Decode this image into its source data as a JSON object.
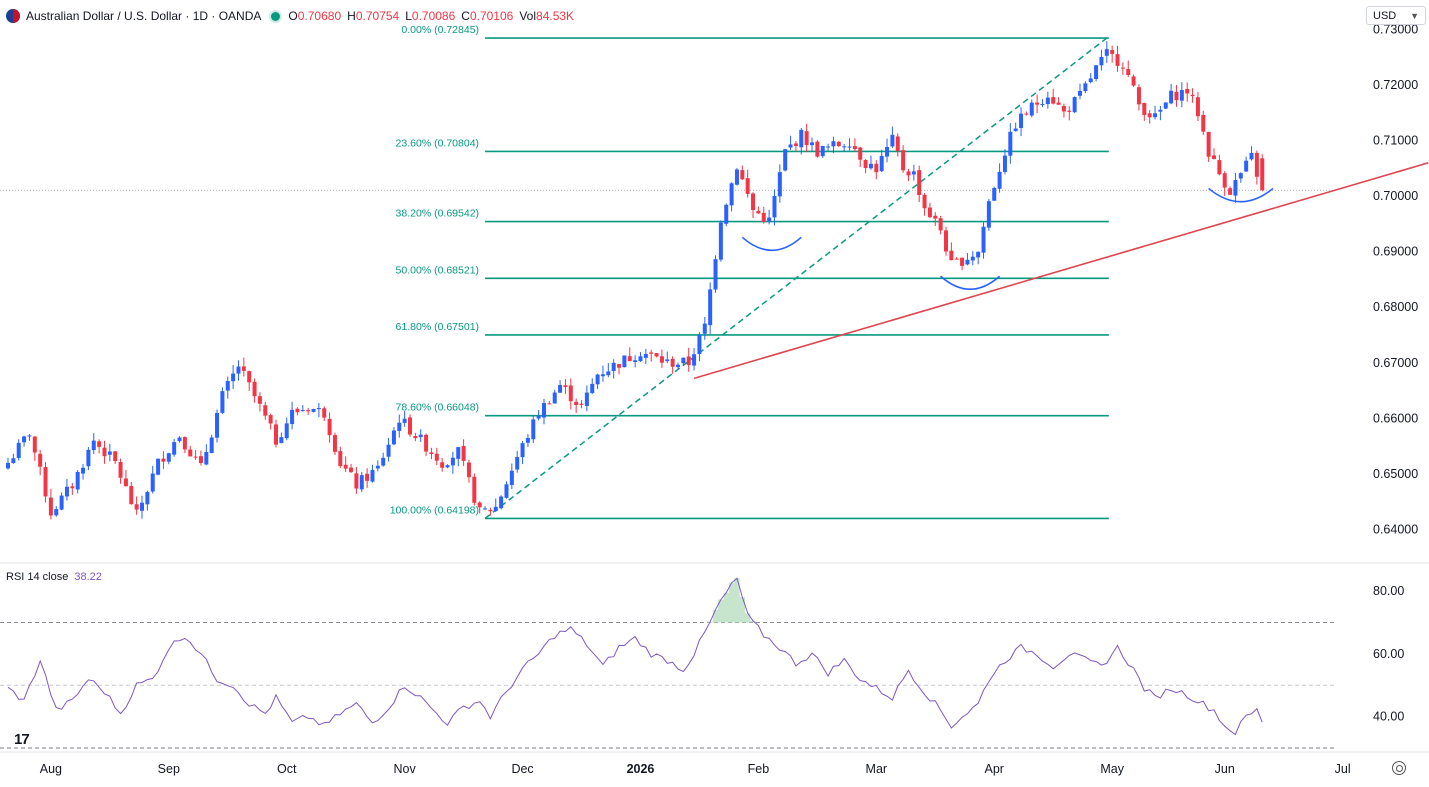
{
  "header": {
    "symbol_title": "Australian Dollar / U.S. Dollar · 1D · OANDA",
    "ohlc": [
      {
        "key": "O",
        "value": "0.70680"
      },
      {
        "key": "H",
        "value": "0.70754"
      },
      {
        "key": "L",
        "value": "0.70086"
      },
      {
        "key": "C",
        "value": "0.70106"
      },
      {
        "key": "Vol",
        "value": "84.53K"
      }
    ],
    "currency": "USD"
  },
  "rsi_legend": {
    "label": "RSI 14 close",
    "value": "38.22"
  },
  "colors": {
    "up": "#2962ff",
    "down": "#f23645",
    "fib": "#089981",
    "trend": "#e0454f",
    "rsi": "#7e57c2",
    "arc": "#2962ff"
  },
  "chart_data": {
    "type": "candlestick",
    "title": "Australian Dollar / U.S. Dollar · 1D · OANDA",
    "price_axis": {
      "ylim": [
        0.6345,
        0.7335
      ],
      "ticks": [
        "0.73000",
        "0.72000",
        "0.71000",
        "0.70000",
        "0.69000",
        "0.68000",
        "0.67000",
        "0.66000",
        "0.65000",
        "0.64000"
      ]
    },
    "time_axis": {
      "labels": [
        "Aug",
        "Sep",
        "Oct",
        "Nov",
        "Dec",
        "2026",
        "Feb",
        "Mar",
        "Apr",
        "May",
        "Jun",
        "Jul"
      ],
      "label_bar_index": [
        8,
        30,
        52,
        74,
        96,
        118,
        140,
        162,
        184,
        206,
        227,
        249
      ]
    },
    "last_price": 0.70106,
    "fibonacci": [
      {
        "label": "0.00% (0.72845)",
        "price": 0.72845
      },
      {
        "label": "23.60% (0.70804)",
        "price": 0.70804
      },
      {
        "label": "38.20% (0.69542)",
        "price": 0.69542
      },
      {
        "label": "50.00% (0.68521)",
        "price": 0.68521
      },
      {
        "label": "61.80% (0.67501)",
        "price": 0.67501
      },
      {
        "label": "78.60% (0.66048)",
        "price": 0.66048
      },
      {
        "label": "100.00% (0.64198)",
        "price": 0.64198
      }
    ],
    "fib_range_bars": [
      89,
      205
    ],
    "trendline": {
      "from": {
        "bar": 128,
        "price": 0.6672
      },
      "to": {
        "bar": 265,
        "price": 0.706
      }
    },
    "anchors": [
      {
        "name": "low",
        "key": "fib_low"
      },
      {
        "name": "high",
        "key": "fib_high"
      }
    ],
    "arcs": [
      {
        "bar_from": 137,
        "bar_to": 148,
        "price": 0.6915,
        "depth": 0.0018
      },
      {
        "bar_from": 174,
        "bar_to": 185,
        "price": 0.6845,
        "depth": 0.0018
      },
      {
        "bar_from": 224,
        "bar_to": 236,
        "price": 0.7003,
        "depth": 0.0019
      }
    ],
    "waypoints": [
      [
        0,
        0.652
      ],
      [
        4,
        0.6575
      ],
      [
        8,
        0.643
      ],
      [
        12,
        0.648
      ],
      [
        16,
        0.656
      ],
      [
        20,
        0.652
      ],
      [
        24,
        0.6425
      ],
      [
        28,
        0.652
      ],
      [
        32,
        0.657
      ],
      [
        36,
        0.651
      ],
      [
        40,
        0.664
      ],
      [
        43,
        0.6695
      ],
      [
        47,
        0.662
      ],
      [
        50,
        0.656
      ],
      [
        53,
        0.661
      ],
      [
        56,
        0.662
      ],
      [
        59,
        0.661
      ],
      [
        62,
        0.652
      ],
      [
        65,
        0.648
      ],
      [
        69,
        0.651
      ],
      [
        73,
        0.66
      ],
      [
        77,
        0.656
      ],
      [
        81,
        0.652
      ],
      [
        84,
        0.654
      ],
      [
        88,
        0.643
      ],
      [
        91,
        0.644
      ],
      [
        95,
        0.653
      ],
      [
        99,
        0.661
      ],
      [
        103,
        0.666
      ],
      [
        107,
        0.662
      ],
      [
        110,
        0.668
      ],
      [
        114,
        0.67
      ],
      [
        118,
        0.672
      ],
      [
        123,
        0.67
      ],
      [
        127,
        0.67
      ],
      [
        130,
        0.6765
      ],
      [
        133,
        0.696
      ],
      [
        136,
        0.7055
      ],
      [
        139,
        0.6975
      ],
      [
        142,
        0.6955
      ],
      [
        145,
        0.708
      ],
      [
        148,
        0.711
      ],
      [
        151,
        0.708
      ],
      [
        154,
        0.709
      ],
      [
        157,
        0.71
      ],
      [
        160,
        0.706
      ],
      [
        162,
        0.705
      ],
      [
        165,
        0.71
      ],
      [
        167,
        0.705
      ],
      [
        169,
        0.704
      ],
      [
        171,
        0.698
      ],
      [
        174,
        0.694
      ],
      [
        176,
        0.6875
      ],
      [
        178,
        0.6885
      ],
      [
        181,
        0.69
      ],
      [
        183,
        0.699
      ],
      [
        186,
        0.708
      ],
      [
        188,
        0.713
      ],
      [
        191,
        0.716
      ],
      [
        194,
        0.7185
      ],
      [
        197,
        0.715
      ],
      [
        200,
        0.718
      ],
      [
        203,
        0.723
      ],
      [
        205,
        0.7255
      ],
      [
        208,
        0.724
      ],
      [
        211,
        0.7165
      ],
      [
        214,
        0.714
      ],
      [
        217,
        0.718
      ],
      [
        220,
        0.719
      ],
      [
        222,
        0.715
      ],
      [
        224,
        0.708
      ],
      [
        226,
        0.704
      ],
      [
        228,
        0.701
      ],
      [
        230,
        0.704
      ],
      [
        232,
        0.707
      ],
      [
        234,
        0.7011
      ]
    ],
    "rsi": {
      "ylim": [
        30,
        88
      ],
      "ticks": [
        "80.00",
        "60.00",
        "40.00"
      ],
      "overbought": 70,
      "mid": 50,
      "oversold": 30,
      "last": 38.22,
      "series_points": [
        [
          0,
          49
        ],
        [
          3,
          45
        ],
        [
          6,
          58
        ],
        [
          9,
          42
        ],
        [
          12,
          45
        ],
        [
          15,
          52
        ],
        [
          18,
          48
        ],
        [
          21,
          41
        ],
        [
          24,
          50
        ],
        [
          27,
          52
        ],
        [
          30,
          62
        ],
        [
          33,
          66
        ],
        [
          36,
          60
        ],
        [
          39,
          52
        ],
        [
          42,
          50
        ],
        [
          45,
          44
        ],
        [
          48,
          41
        ],
        [
          50,
          46
        ],
        [
          53,
          38
        ],
        [
          56,
          40
        ],
        [
          59,
          37
        ],
        [
          62,
          41
        ],
        [
          65,
          44
        ],
        [
          68,
          38
        ],
        [
          71,
          43
        ],
        [
          74,
          50
        ],
        [
          77,
          46
        ],
        [
          80,
          41
        ],
        [
          82,
          38
        ],
        [
          85,
          43
        ],
        [
          88,
          45
        ],
        [
          90,
          40
        ],
        [
          93,
          48
        ],
        [
          96,
          55
        ],
        [
          99,
          60
        ],
        [
          102,
          66
        ],
        [
          105,
          68
        ],
        [
          108,
          63
        ],
        [
          111,
          56
        ],
        [
          114,
          62
        ],
        [
          117,
          65
        ],
        [
          120,
          60
        ],
        [
          123,
          58
        ],
        [
          126,
          55
        ],
        [
          128,
          60
        ],
        [
          131,
          70
        ],
        [
          133,
          77
        ],
        [
          136,
          84
        ],
        [
          138,
          72
        ],
        [
          141,
          66
        ],
        [
          144,
          62
        ],
        [
          147,
          57
        ],
        [
          150,
          60
        ],
        [
          153,
          54
        ],
        [
          156,
          58
        ],
        [
          159,
          52
        ],
        [
          162,
          49
        ],
        [
          165,
          46
        ],
        [
          168,
          55
        ],
        [
          170,
          50
        ],
        [
          172,
          46
        ],
        [
          174,
          42
        ],
        [
          176,
          37
        ],
        [
          178,
          40
        ],
        [
          181,
          44
        ],
        [
          183,
          52
        ],
        [
          186,
          58
        ],
        [
          189,
          62
        ],
        [
          192,
          60
        ],
        [
          195,
          56
        ],
        [
          198,
          60
        ],
        [
          201,
          58
        ],
        [
          204,
          56
        ],
        [
          207,
          62
        ],
        [
          210,
          55
        ],
        [
          212,
          49
        ],
        [
          214,
          46
        ],
        [
          217,
          49
        ],
        [
          220,
          47
        ],
        [
          223,
          44
        ],
        [
          225,
          42
        ],
        [
          227,
          37
        ],
        [
          229,
          35
        ],
        [
          231,
          40
        ],
        [
          233,
          42
        ],
        [
          234,
          38.22
        ]
      ]
    }
  }
}
